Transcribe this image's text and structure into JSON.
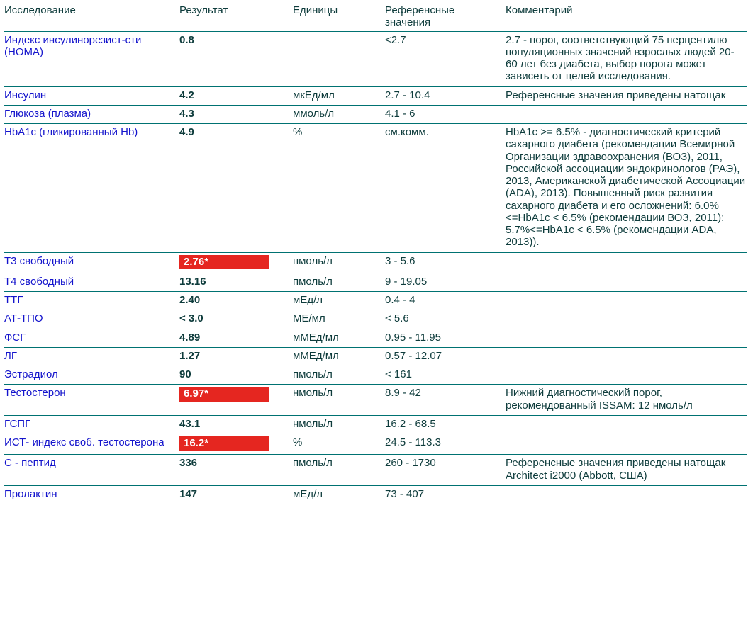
{
  "header": {
    "col_test": "Исследование",
    "col_result": "Результат",
    "col_units": "Единицы",
    "col_reference": "Референсные значения",
    "col_comment": "Комментарий"
  },
  "colors": {
    "test_name": "#1414cc",
    "text": "#0e3c3c",
    "line": "#007272",
    "flag_bg": "#e52620",
    "flag_text": "#ffffff"
  },
  "rows": [
    {
      "name": "Индекс инсулинорезист-сти (НОМА)",
      "result": "0.8",
      "flagged": false,
      "units": "",
      "reference": "<2.7",
      "comment": "2.7 - порог, соответствующий 75 перцентилю популяционных значений взрослых людей 20-60 лет без диабета, выбор порога может зависеть от целей исследования."
    },
    {
      "name": "Инсулин",
      "result": "4.2",
      "flagged": false,
      "units": "мкЕд/мл",
      "reference": "2.7 - 10.4",
      "comment": "Референсные значения приведены натощак"
    },
    {
      "name": "Глюкоза (плазма)",
      "result": "4.3",
      "flagged": false,
      "units": "ммоль/л",
      "reference": "4.1 - 6",
      "comment": ""
    },
    {
      "name": "HbA1c (гликированный Hb)",
      "result": "4.9",
      "flagged": false,
      "units": "%",
      "reference": "см.комм.",
      "comment": "HbA1c >= 6.5% - диагностический критерий сахарного диабета (рекомендации Всемирной Организации здравоохранения (ВОЗ), 2011, Российской ассоциации эндокринологов (РАЭ), 2013, Американской диабетической Ассоциации (ADA), 2013). Повышенный риск развития сахарного диабета и его осложнений: 6.0%<=HbA1c < 6.5% (рекомендации ВОЗ, 2011); 5.7%<=HbA1c < 6.5% (рекомендации ADA, 2013))."
    },
    {
      "name": "Т3 свободный",
      "result": "2.76*",
      "flagged": true,
      "units": "пмоль/л",
      "reference": "3 - 5.6",
      "comment": ""
    },
    {
      "name": "Т4 свободный",
      "result": "13.16",
      "flagged": false,
      "units": "пмоль/л",
      "reference": "9 - 19.05",
      "comment": ""
    },
    {
      "name": "ТТГ",
      "result": "2.40",
      "flagged": false,
      "units": "мЕд/л",
      "reference": "0.4 - 4",
      "comment": ""
    },
    {
      "name": "АТ-ТПО",
      "result": "< 3.0",
      "flagged": false,
      "units": "МЕ/мл",
      "reference": "< 5.6",
      "comment": ""
    },
    {
      "name": "ФСГ",
      "result": "4.89",
      "flagged": false,
      "units": "мМЕд/мл",
      "reference": "0.95 - 11.95",
      "comment": ""
    },
    {
      "name": "ЛГ",
      "result": "1.27",
      "flagged": false,
      "units": "мМЕд/мл",
      "reference": "0.57 - 12.07",
      "comment": ""
    },
    {
      "name": "Эстрадиол",
      "result": "90",
      "flagged": false,
      "units": "пмоль/л",
      "reference": "< 161",
      "comment": ""
    },
    {
      "name": "Тестостерон",
      "result": "6.97*",
      "flagged": true,
      "units": "нмоль/л",
      "reference": "8.9 - 42",
      "comment": "Нижний диагностический порог, рекомендованный ISSAM: 12 нмоль/л"
    },
    {
      "name": "ГСПГ",
      "result": "43.1",
      "flagged": false,
      "units": "нмоль/л",
      "reference": "16.2 - 68.5",
      "comment": ""
    },
    {
      "name": "ИСТ- индекс своб. тестостерона",
      "result": "16.2*",
      "flagged": true,
      "units": "%",
      "reference": "24.5 - 113.3",
      "comment": ""
    },
    {
      "name": "С - пептид",
      "result": "336",
      "flagged": false,
      "units": "пмоль/л",
      "reference": "260 - 1730",
      "comment": "Референсные значения приведены натощак\nArchitect i2000 (Abbott, США)"
    },
    {
      "name": "Пролактин",
      "result": "147",
      "flagged": false,
      "units": "мЕд/л",
      "reference": "73 - 407",
      "comment": ""
    }
  ]
}
